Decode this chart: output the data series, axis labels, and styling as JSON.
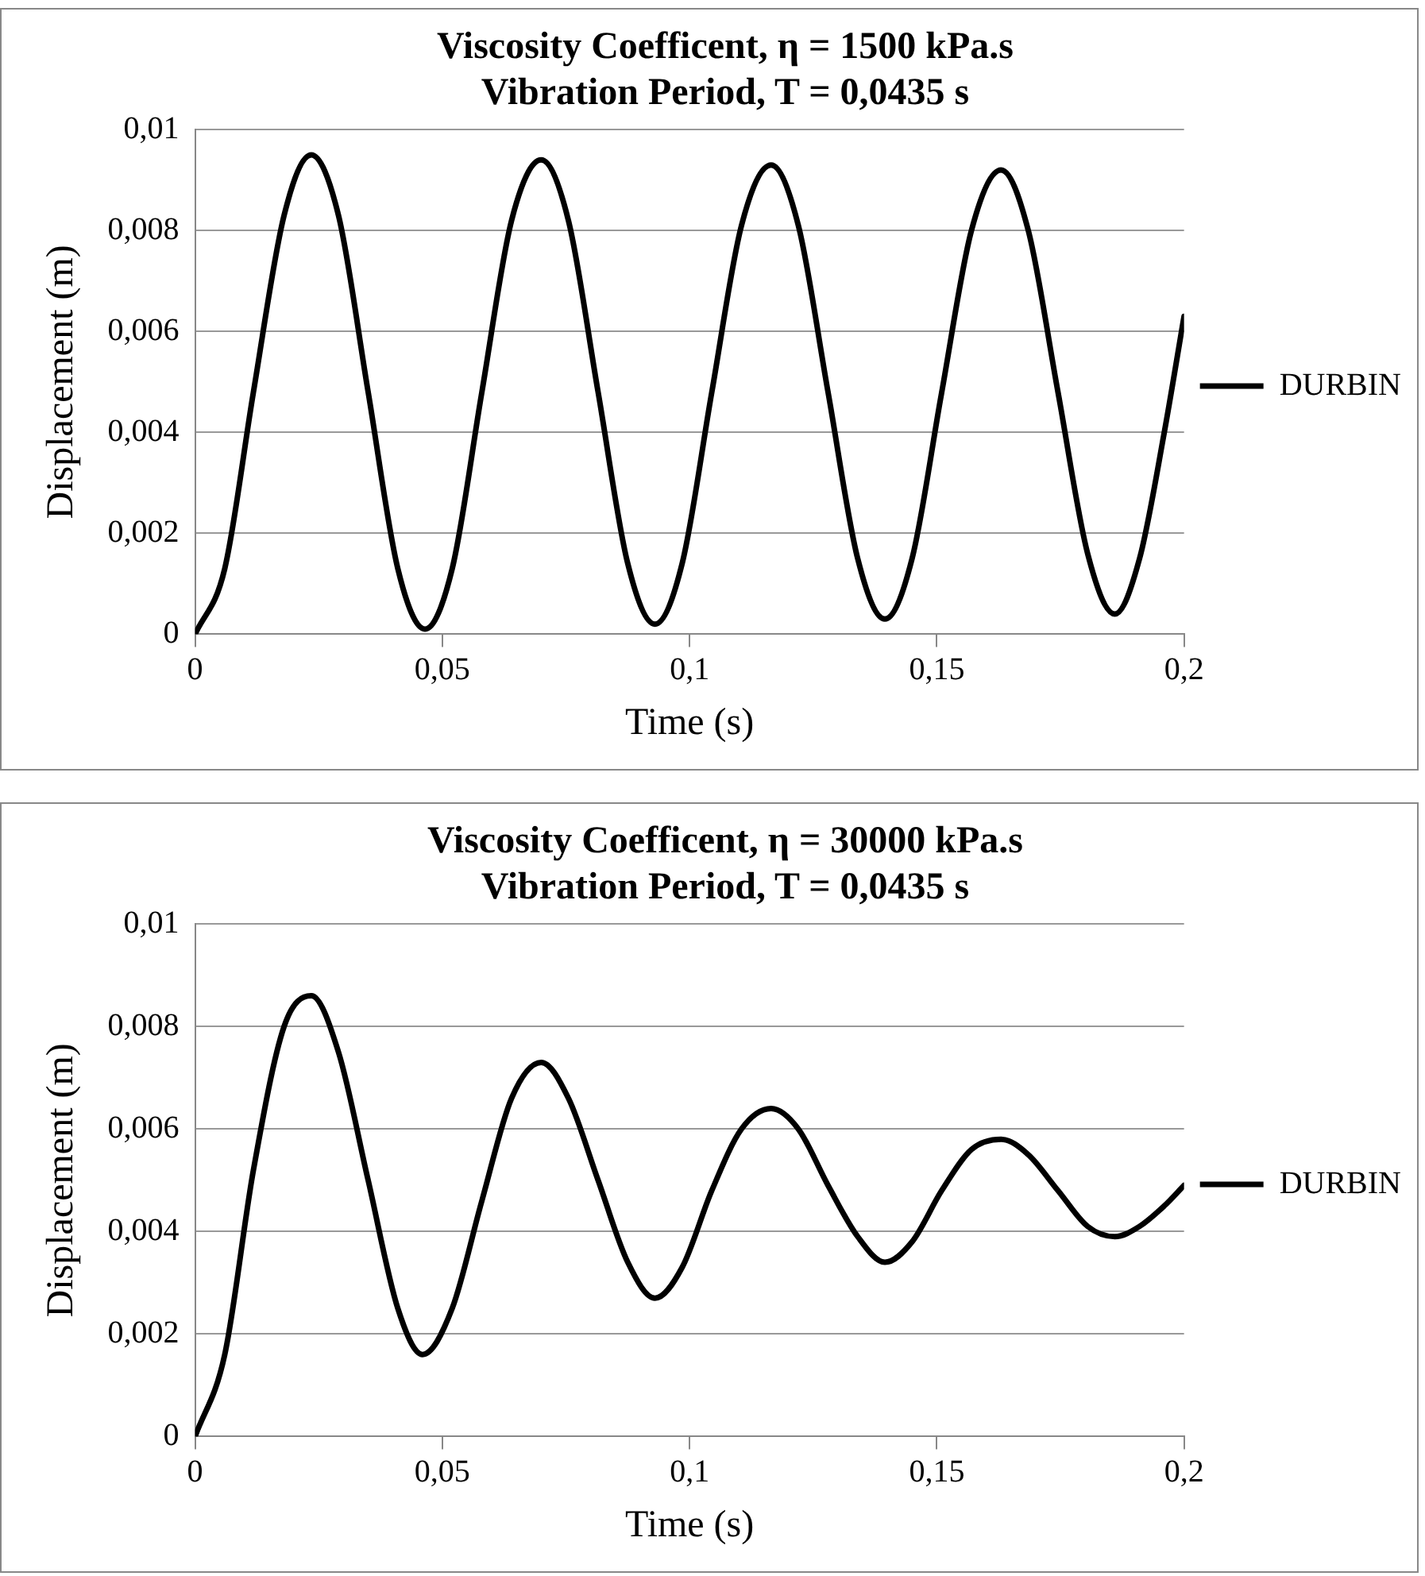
{
  "chart_data": [
    {
      "type": "line",
      "title": [
        "Viscosity Coefficent, η = 1500 kPa.s",
        "Vibration Period, T = 0,0435 s"
      ],
      "xlabel": "Time (s)",
      "ylabel": "Displacement (m)",
      "legend": "right",
      "grid": "y",
      "xlim": [
        0,
        0.2
      ],
      "xticks": [
        0,
        {
          "value": 0.05,
          "label": "0,05"
        },
        {
          "value": 0.1,
          "label": "0,1"
        },
        {
          "value": 0.15,
          "label": "0,15"
        },
        {
          "value": 0.2,
          "label": "0,2"
        }
      ],
      "ylim": [
        0,
        0.01
      ],
      "yticks": [
        0,
        {
          "value": 0.002,
          "label": "0,002"
        },
        {
          "value": 0.004,
          "label": "0,004"
        },
        {
          "value": 0.006,
          "label": "0,006"
        },
        {
          "value": 0.008,
          "label": "0,008"
        },
        {
          "value": 0.01,
          "label": "0,01"
        }
      ],
      "series": [
        {
          "name": "DURBIN",
          "color": "#000000",
          "x": [
            0,
            0.006,
            0.0118,
            0.018,
            0.0235,
            0.029,
            0.035,
            0.041,
            0.0465,
            0.052,
            0.058,
            0.064,
            0.07,
            0.0755,
            0.0815,
            0.0875,
            0.093,
            0.0985,
            0.1045,
            0.1105,
            0.1165,
            0.122,
            0.128,
            0.134,
            0.1395,
            0.145,
            0.151,
            0.157,
            0.163,
            0.1685,
            0.1745,
            0.1805,
            0.186,
            0.191,
            0.196,
            0.2
          ],
          "values": [
            0,
            0.0013,
            0.0048,
            0.0083,
            0.0095,
            0.0083,
            0.0048,
            0.0013,
            0.0001,
            0.0013,
            0.0048,
            0.0082,
            0.0094,
            0.0082,
            0.0048,
            0.0014,
            0.0002,
            0.0014,
            0.0048,
            0.0081,
            0.0093,
            0.0081,
            0.0048,
            0.0015,
            0.0003,
            0.0015,
            0.0048,
            0.008,
            0.0092,
            0.008,
            0.0048,
            0.0016,
            0.0004,
            0.0015,
            0.004,
            0.0063
          ]
        }
      ]
    },
    {
      "type": "line",
      "title": [
        "Viscosity Coefficent, η = 30000 kPa.s",
        "Vibration Period, T = 0,0435 s"
      ],
      "xlabel": "Time (s)",
      "ylabel": "Displacement (m)",
      "legend": "right",
      "grid": "y",
      "xlim": [
        0,
        0.2
      ],
      "xticks": [
        0,
        {
          "value": 0.05,
          "label": "0,05"
        },
        {
          "value": 0.1,
          "label": "0,1"
        },
        {
          "value": 0.15,
          "label": "0,15"
        },
        {
          "value": 0.2,
          "label": "0,2"
        }
      ],
      "ylim": [
        0,
        0.01
      ],
      "yticks": [
        0,
        {
          "value": 0.002,
          "label": "0,002"
        },
        {
          "value": 0.004,
          "label": "0,004"
        },
        {
          "value": 0.006,
          "label": "0,006"
        },
        {
          "value": 0.008,
          "label": "0,008"
        },
        {
          "value": 0.01,
          "label": "0,01"
        }
      ],
      "series": [
        {
          "name": "DURBIN",
          "color": "#000000",
          "x": [
            0,
            0.006,
            0.0118,
            0.018,
            0.0235,
            0.029,
            0.035,
            0.041,
            0.046,
            0.052,
            0.058,
            0.064,
            0.07,
            0.0755,
            0.0815,
            0.0875,
            0.093,
            0.0985,
            0.1045,
            0.1105,
            0.1165,
            0.122,
            0.128,
            0.134,
            0.1395,
            0.145,
            0.151,
            0.157,
            0.163,
            0.1685,
            0.1745,
            0.1805,
            0.186,
            0.191,
            0.196,
            0.2
          ],
          "values": [
            0,
            0.0016,
            0.0052,
            0.008,
            0.0086,
            0.0075,
            0.005,
            0.0025,
            0.0016,
            0.0025,
            0.0046,
            0.0066,
            0.0073,
            0.0066,
            0.005,
            0.0034,
            0.0027,
            0.0033,
            0.0048,
            0.006,
            0.0064,
            0.006,
            0.0049,
            0.0039,
            0.0034,
            0.0038,
            0.0048,
            0.0056,
            0.0058,
            0.0055,
            0.0048,
            0.0041,
            0.0039,
            0.0041,
            0.0045,
            0.0049
          ]
        }
      ]
    }
  ]
}
